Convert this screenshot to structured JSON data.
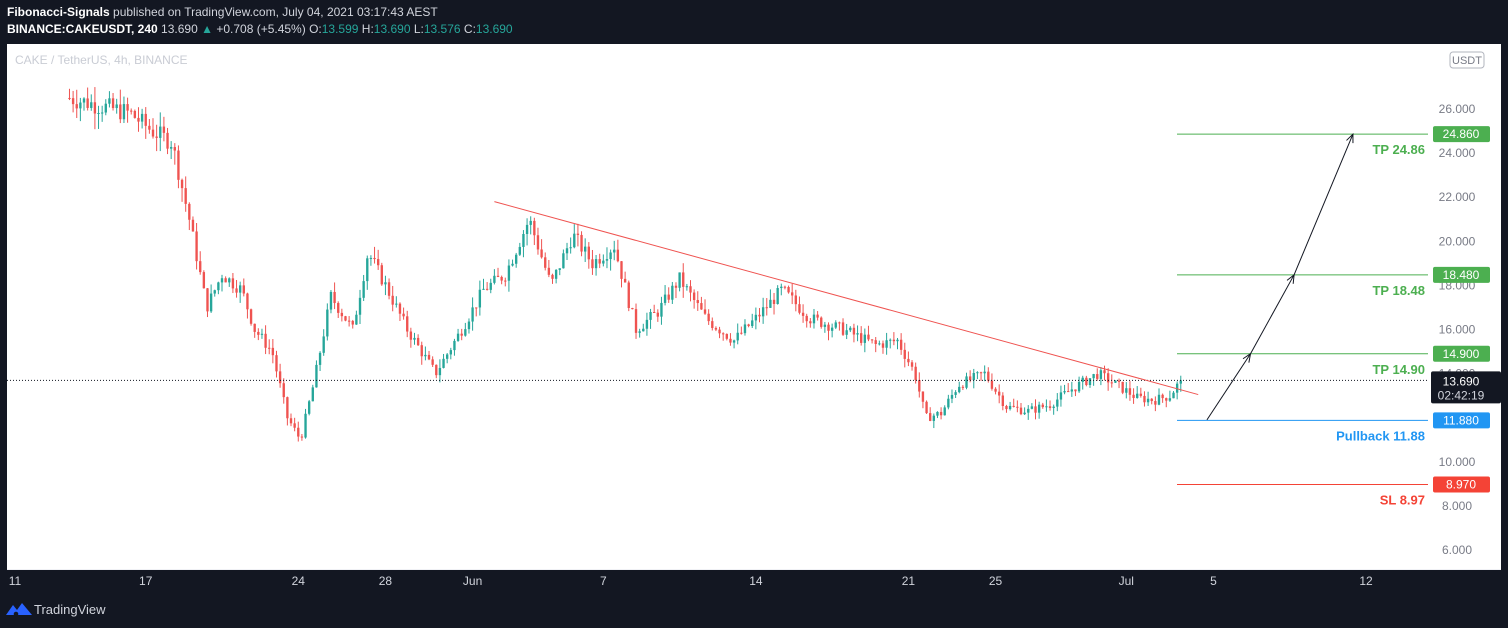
{
  "header": {
    "publisher": "Fibonacci-Signals",
    "published_text": "published on TradingView.com, July 04, 2021 03:17:43 AEST",
    "symbol_label": "BINANCE:CAKEUSDT, 240",
    "last_price": "13.690",
    "change": "+0.708 (+5.45%)",
    "o_label": "O:",
    "o_value": "13.599",
    "h_label": "H:",
    "h_value": "13.690",
    "l_label": "L:",
    "l_value": "13.576",
    "c_label": "C:",
    "c_value": "13.690"
  },
  "chart_data": {
    "type": "candlestick",
    "watermark": "CAKE / TetherUS, 4h, BINANCE",
    "currency": "USDT",
    "ylim": [
      5.0,
      26.0
    ],
    "y_ticks": [
      "6.000",
      "8.000",
      "10.000",
      "12.000",
      "14.000",
      "16.000",
      "18.000",
      "20.000",
      "22.000",
      "24.000",
      "26.000"
    ],
    "x_ticks": [
      {
        "label": "11",
        "x": 11
      },
      {
        "label": "17",
        "x": 17
      },
      {
        "label": "24",
        "x": 24
      },
      {
        "label": "28",
        "x": 28
      },
      {
        "label": "Jun",
        "x": 32
      },
      {
        "label": "7",
        "x": 38
      },
      {
        "label": "14",
        "x": 45
      },
      {
        "label": "21",
        "x": 52
      },
      {
        "label": "25",
        "x": 56
      },
      {
        "label": "Jul",
        "x": 62
      },
      {
        "label": "5",
        "x": 66
      },
      {
        "label": "12",
        "x": 73
      }
    ],
    "x_range_days": [
      11,
      78
    ],
    "anchors": [
      {
        "x": 13.5,
        "y": 26.5
      },
      {
        "x": 16.3,
        "y": 25.8
      },
      {
        "x": 17.3,
        "y": 25.0
      },
      {
        "x": 18.2,
        "y": 24.5
      },
      {
        "x": 19.0,
        "y": 21.0
      },
      {
        "x": 19.8,
        "y": 17.0
      },
      {
        "x": 20.5,
        "y": 18.5
      },
      {
        "x": 21.4,
        "y": 17.8
      },
      {
        "x": 22.0,
        "y": 16.0
      },
      {
        "x": 22.8,
        "y": 15.0
      },
      {
        "x": 23.5,
        "y": 12.0
      },
      {
        "x": 24.1,
        "y": 11.0
      },
      {
        "x": 24.7,
        "y": 13.5
      },
      {
        "x": 25.5,
        "y": 17.5
      },
      {
        "x": 26.5,
        "y": 16.0
      },
      {
        "x": 27.2,
        "y": 19.5
      },
      {
        "x": 28.0,
        "y": 18.0
      },
      {
        "x": 29.0,
        "y": 16.0
      },
      {
        "x": 30.3,
        "y": 14.0
      },
      {
        "x": 31.5,
        "y": 16.0
      },
      {
        "x": 32.5,
        "y": 17.8
      },
      {
        "x": 33.5,
        "y": 18.5
      },
      {
        "x": 34.6,
        "y": 21.0
      },
      {
        "x": 35.6,
        "y": 18.0
      },
      {
        "x": 36.6,
        "y": 20.3
      },
      {
        "x": 37.5,
        "y": 19.0
      },
      {
        "x": 38.5,
        "y": 19.8
      },
      {
        "x": 39.5,
        "y": 16.0
      },
      {
        "x": 40.5,
        "y": 16.8
      },
      {
        "x": 41.5,
        "y": 18.3
      },
      {
        "x": 42.7,
        "y": 16.5
      },
      {
        "x": 44.0,
        "y": 15.5
      },
      {
        "x": 45.0,
        "y": 16.5
      },
      {
        "x": 46.2,
        "y": 17.8
      },
      {
        "x": 47.5,
        "y": 16.5
      },
      {
        "x": 49.0,
        "y": 16.0
      },
      {
        "x": 50.5,
        "y": 15.3
      },
      {
        "x": 51.5,
        "y": 15.5
      },
      {
        "x": 52.3,
        "y": 14.0
      },
      {
        "x": 52.8,
        "y": 12.0
      },
      {
        "x": 53.5,
        "y": 12.2
      },
      {
        "x": 54.3,
        "y": 13.5
      },
      {
        "x": 55.5,
        "y": 14.0
      },
      {
        "x": 56.5,
        "y": 12.5
      },
      {
        "x": 57.5,
        "y": 12.3
      },
      {
        "x": 58.5,
        "y": 12.6
      },
      {
        "x": 59.5,
        "y": 13.3
      },
      {
        "x": 60.7,
        "y": 14.0
      },
      {
        "x": 61.7,
        "y": 13.4
      },
      {
        "x": 62.5,
        "y": 12.9
      },
      {
        "x": 63.3,
        "y": 12.8
      },
      {
        "x": 64.0,
        "y": 13.0
      },
      {
        "x": 64.5,
        "y": 13.69
      }
    ],
    "trendline": {
      "x1": 33.0,
      "y1": 21.8,
      "x2": 65.3,
      "y2": 13.05,
      "color": "#ef5350"
    },
    "levels": [
      {
        "name": "TP 24.86",
        "value": 24.86,
        "label_value": "24.860",
        "color": "#4caf50"
      },
      {
        "name": "TP 18.48",
        "value": 18.48,
        "label_value": "18.480",
        "color": "#4caf50"
      },
      {
        "name": "TP 14.90",
        "value": 14.9,
        "label_value": "14.900",
        "color": "#4caf50"
      },
      {
        "name": "Pullback 11.88",
        "value": 11.88,
        "label_value": "11.880",
        "color": "#2196f3"
      },
      {
        "name": "SL 8.97",
        "value": 8.97,
        "label_value": "8.970",
        "color": "#f44336"
      }
    ],
    "current_price": {
      "value": 13.69,
      "label": "13.690",
      "countdown": "02:42:19"
    },
    "projection_path": [
      {
        "x": 65.7,
        "y": 11.9
      },
      {
        "x": 67.7,
        "y": 14.9
      },
      {
        "x": 69.7,
        "y": 18.48
      },
      {
        "x": 72.4,
        "y": 24.86
      }
    ],
    "colors": {
      "up": "#26a69a",
      "down": "#ef5350",
      "text": "#b2b5be",
      "grid": "#2a2e39"
    }
  },
  "footer": {
    "brand": "TradingView"
  }
}
